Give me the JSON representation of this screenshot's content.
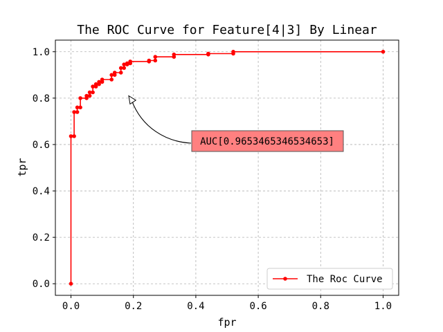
{
  "chart_data": {
    "type": "line",
    "title": "The ROC Curve for Feature[4|3] By Linear",
    "xlabel": "fpr",
    "ylabel": "tpr",
    "xlim": [
      -0.05,
      1.05
    ],
    "ylim": [
      -0.05,
      1.05
    ],
    "xticks": [
      "0.0",
      "0.2",
      "0.4",
      "0.6",
      "0.8",
      "1.0"
    ],
    "yticks": [
      "0.0",
      "0.2",
      "0.4",
      "0.6",
      "0.8",
      "1.0"
    ],
    "grid": true,
    "legend_position": "lower-right",
    "annotation": {
      "text": "AUC[0.9653465346534653]",
      "arrow_target": [
        0.185,
        0.81
      ],
      "text_position": [
        0.39,
        0.61
      ]
    },
    "series": [
      {
        "name": "The Roc Curve",
        "color": "#ff0000",
        "points": [
          [
            0.0,
            0.0
          ],
          [
            0.0,
            0.636
          ],
          [
            0.01,
            0.636
          ],
          [
            0.01,
            0.74
          ],
          [
            0.02,
            0.74
          ],
          [
            0.02,
            0.76
          ],
          [
            0.03,
            0.76
          ],
          [
            0.03,
            0.8
          ],
          [
            0.05,
            0.8
          ],
          [
            0.05,
            0.81
          ],
          [
            0.06,
            0.81
          ],
          [
            0.06,
            0.825
          ],
          [
            0.07,
            0.825
          ],
          [
            0.07,
            0.85
          ],
          [
            0.08,
            0.85
          ],
          [
            0.08,
            0.86
          ],
          [
            0.09,
            0.86
          ],
          [
            0.09,
            0.87
          ],
          [
            0.1,
            0.87
          ],
          [
            0.1,
            0.88
          ],
          [
            0.13,
            0.88
          ],
          [
            0.13,
            0.9
          ],
          [
            0.14,
            0.9
          ],
          [
            0.14,
            0.91
          ],
          [
            0.16,
            0.91
          ],
          [
            0.16,
            0.93
          ],
          [
            0.17,
            0.93
          ],
          [
            0.17,
            0.945
          ],
          [
            0.18,
            0.945
          ],
          [
            0.18,
            0.95
          ],
          [
            0.19,
            0.95
          ],
          [
            0.19,
            0.958
          ],
          [
            0.25,
            0.958
          ],
          [
            0.25,
            0.962
          ],
          [
            0.27,
            0.962
          ],
          [
            0.27,
            0.978
          ],
          [
            0.33,
            0.978
          ],
          [
            0.33,
            0.988
          ],
          [
            0.44,
            0.988
          ],
          [
            0.44,
            0.992
          ],
          [
            0.52,
            0.992
          ],
          [
            0.52,
            1.0
          ],
          [
            1.0,
            1.0
          ]
        ]
      }
    ]
  }
}
